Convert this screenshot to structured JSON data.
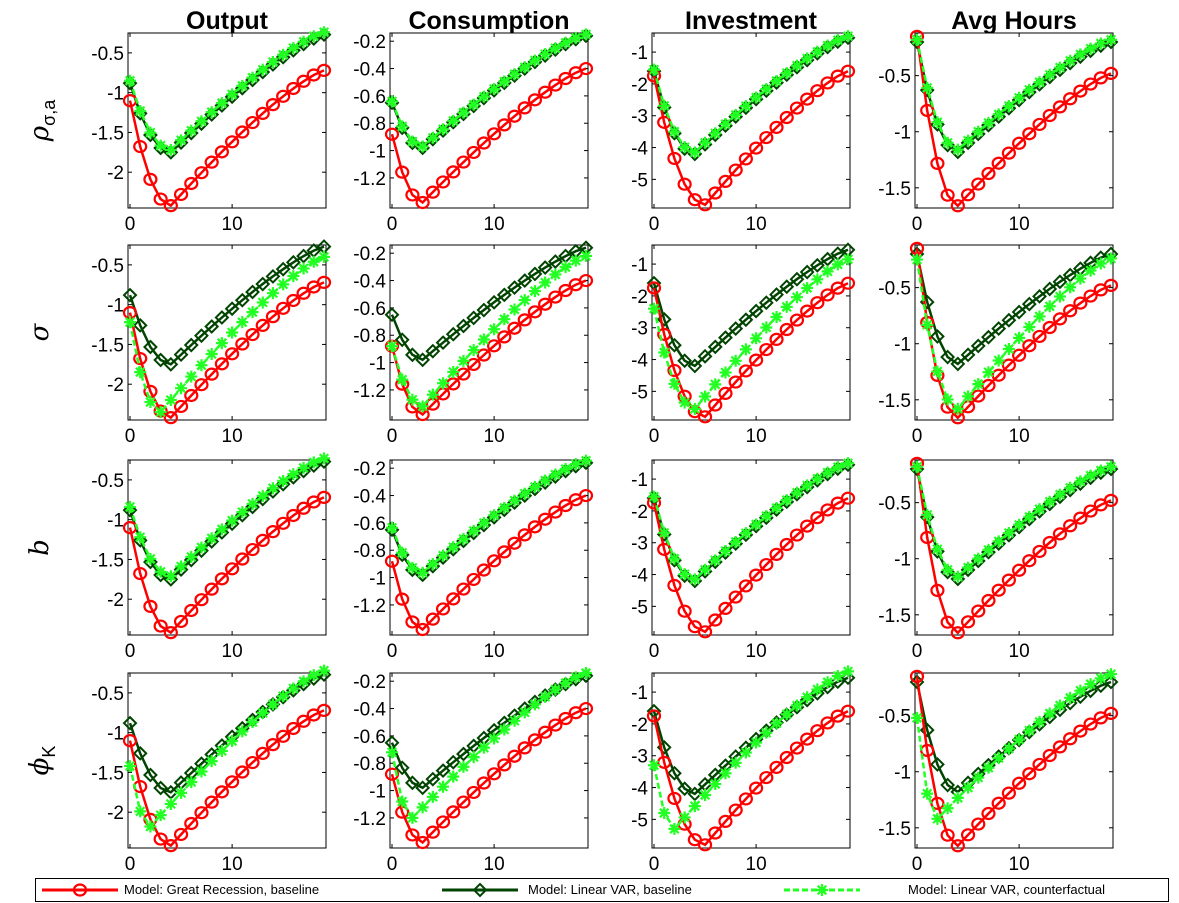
{
  "chart_data": {
    "type": "line",
    "grid": false,
    "x": [
      0,
      1,
      2,
      3,
      4,
      5,
      6,
      7,
      8,
      9,
      10,
      11,
      12,
      13,
      14,
      15,
      16,
      17,
      18,
      19
    ],
    "xticks": [
      0,
      10
    ],
    "columns": [
      "Output",
      "Consumption",
      "Investment",
      "Avg Hours"
    ],
    "rows": [
      {
        "key": "rho",
        "label": "ρ",
        "sub": "σ,a"
      },
      {
        "key": "sigma",
        "label": "σ",
        "sub": ""
      },
      {
        "key": "b",
        "label": "b",
        "sub": ""
      },
      {
        "key": "phi",
        "label": "ϕ",
        "sub": "K"
      }
    ],
    "ylims": [
      [
        -2.45,
        -0.25
      ],
      [
        -1.42,
        -0.14
      ],
      [
        -5.9,
        -0.4
      ],
      [
        -1.68,
        -0.12
      ]
    ],
    "yticks": [
      [
        "-0.5",
        "-1",
        "-1.5",
        "-2"
      ],
      [
        "-0.2",
        "-0.4",
        "-0.6",
        "-0.8",
        "-1",
        "-1.2"
      ],
      [
        "-1",
        "-2",
        "-3",
        "-4",
        "-5"
      ],
      [
        "-0.5",
        "-1",
        "-1.5"
      ]
    ],
    "series_styles": [
      {
        "name": "Model: Great Recession, baseline",
        "color": "#ff0000",
        "marker": "circle"
      },
      {
        "name": "Model: Linear VAR, baseline",
        "color": "#004400",
        "marker": "diamond"
      },
      {
        "name": "Model: Linear VAR, counterfactual",
        "color": "#22ff22",
        "marker": "star"
      }
    ],
    "base_curves": [
      {
        "start": -1.1,
        "trough": -2.42,
        "tmin": 4,
        "end": -0.72
      },
      {
        "start": -0.88,
        "trough": -1.38,
        "tmin": 3,
        "end": -0.4
      },
      {
        "start": -1.75,
        "trough": -5.8,
        "tmin": 5,
        "end": -1.6
      },
      {
        "start": -0.15,
        "trough": -1.66,
        "tmin": 4,
        "end": -0.48
      },
      {
        "start": -0.88,
        "trough": -1.75,
        "tmin": 4,
        "end": -0.27
      },
      {
        "start": -0.65,
        "trough": -0.98,
        "tmin": 3,
        "end": -0.16
      },
      {
        "start": -1.6,
        "trough": -4.2,
        "tmin": 4,
        "end": -0.55
      },
      {
        "start": -0.2,
        "trough": -1.18,
        "tmin": 4,
        "end": -0.2
      }
    ],
    "panels": [
      [
        {
          "s": [
            {
              "c": 0
            },
            {
              "c": 4
            },
            {
              "c": 4,
              "o": 0.03
            }
          ]
        },
        {
          "s": [
            {
              "c": 1
            },
            {
              "c": 5
            },
            {
              "c": 5,
              "o": 0.01
            }
          ]
        },
        {
          "s": [
            {
              "c": 2
            },
            {
              "c": 6
            },
            {
              "c": 6,
              "o": 0.05
            }
          ]
        },
        {
          "s": [
            {
              "c": 3
            },
            {
              "c": 7
            },
            {
              "c": 7,
              "o": 0.02
            }
          ]
        }
      ],
      [
        {
          "s": [
            {
              "c": 0
            },
            {
              "c": 4
            },
            {
              "start": -1.22,
              "trough": -2.35,
              "tmin": 3,
              "end": -0.4
            }
          ]
        },
        {
          "s": [
            {
              "c": 1
            },
            {
              "c": 5
            },
            {
              "start": -0.88,
              "trough": -1.32,
              "tmin": 3,
              "end": -0.22
            }
          ]
        },
        {
          "s": [
            {
              "c": 2
            },
            {
              "c": 6
            },
            {
              "start": -2.4,
              "trough": -5.55,
              "tmin": 4,
              "end": -0.85
            }
          ]
        },
        {
          "s": [
            {
              "c": 3
            },
            {
              "c": 7
            },
            {
              "start": -0.25,
              "trough": -1.58,
              "tmin": 4,
              "end": -0.24
            }
          ]
        }
      ],
      [
        {
          "s": [
            {
              "c": 0
            },
            {
              "c": 4
            },
            {
              "c": 4,
              "o": 0.04
            }
          ]
        },
        {
          "s": [
            {
              "c": 1
            },
            {
              "c": 5
            },
            {
              "c": 5,
              "o": 0.015
            }
          ]
        },
        {
          "s": [
            {
              "c": 2
            },
            {
              "c": 6
            },
            {
              "c": 6,
              "o": 0.05
            }
          ]
        },
        {
          "s": [
            {
              "c": 3
            },
            {
              "c": 7
            },
            {
              "c": 7,
              "o": 0.02
            }
          ]
        }
      ],
      [
        {
          "s": [
            {
              "c": 0
            },
            {
              "c": 4
            },
            {
              "start": -1.42,
              "trough": -2.18,
              "tmin": 2,
              "end": -0.22
            }
          ]
        },
        {
          "s": [
            {
              "c": 1
            },
            {
              "c": 5
            },
            {
              "start": -0.72,
              "trough": -1.2,
              "tmin": 2,
              "end": -0.14
            }
          ]
        },
        {
          "s": [
            {
              "c": 2
            },
            {
              "c": 6
            },
            {
              "start": -3.3,
              "trough": -5.3,
              "tmin": 2,
              "end": -0.35
            }
          ]
        },
        {
          "s": [
            {
              "c": 3
            },
            {
              "c": 7
            },
            {
              "start": -0.52,
              "trough": -1.42,
              "tmin": 2,
              "end": -0.13
            }
          ]
        }
      ]
    ]
  },
  "legend": {
    "items": [
      {
        "label": "Model: Great Recession, baseline",
        "color": "#ff0000",
        "marker": "circle"
      },
      {
        "label": "Model: Linear VAR, baseline",
        "color": "#004400",
        "marker": "diamond"
      },
      {
        "label": "Model: Linear VAR, counterfactual",
        "color": "#22ff22",
        "marker": "star"
      }
    ]
  }
}
